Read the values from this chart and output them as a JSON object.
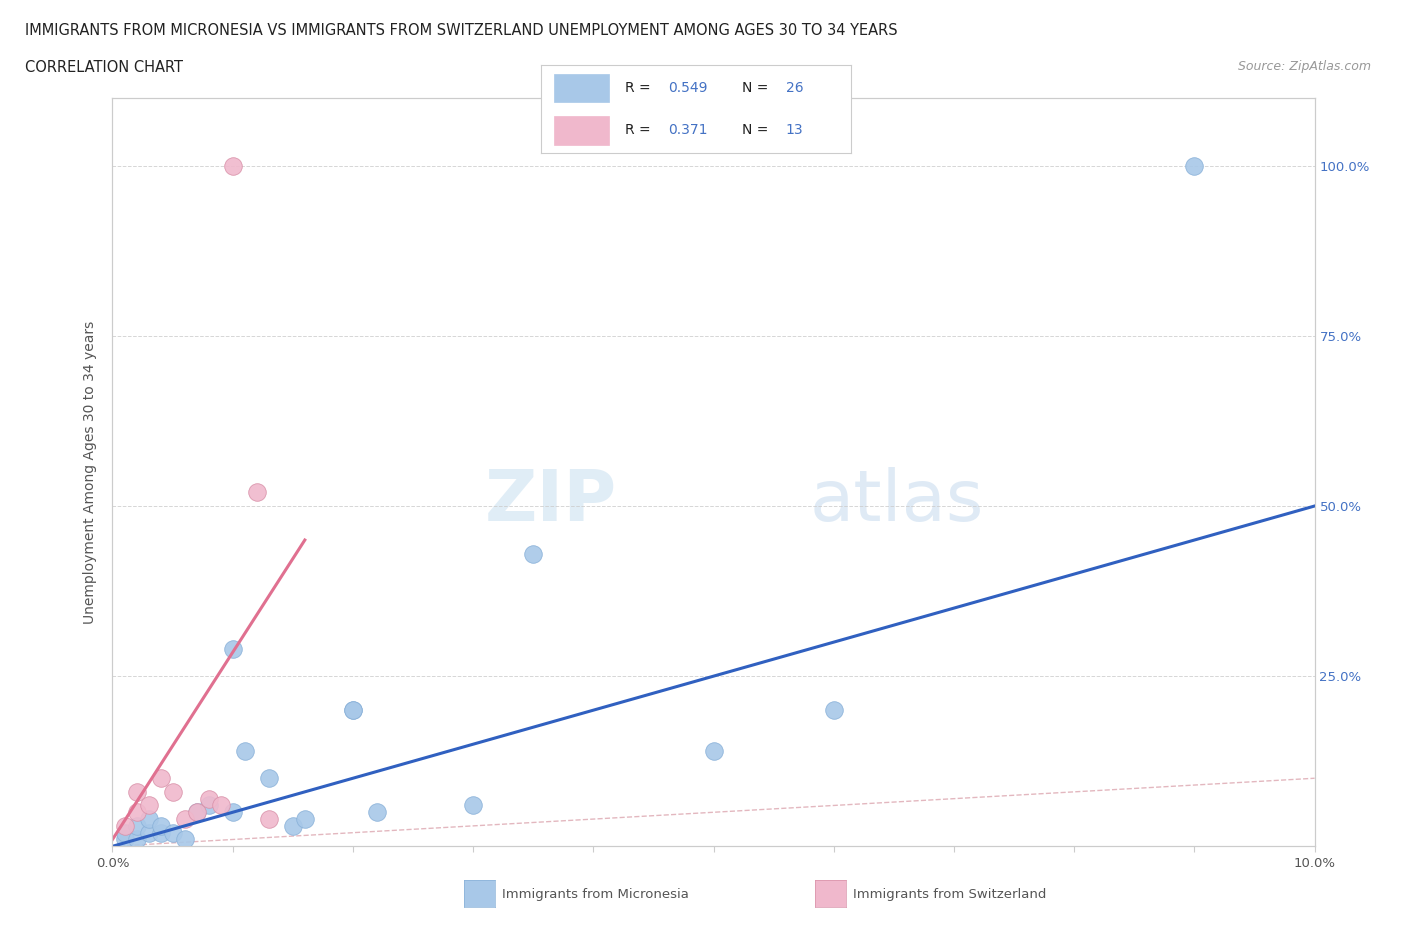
{
  "title_line1": "IMMIGRANTS FROM MICRONESIA VS IMMIGRANTS FROM SWITZERLAND UNEMPLOYMENT AMONG AGES 30 TO 34 YEARS",
  "title_line2": "CORRELATION CHART",
  "source_text": "Source: ZipAtlas.com",
  "ylabel": "Unemployment Among Ages 30 to 34 years",
  "watermark_zip": "ZIP",
  "watermark_atlas": "atlas",
  "xlim": [
    0.0,
    0.1
  ],
  "ylim": [
    0.0,
    1.1
  ],
  "micronesia_color": "#a8c8e8",
  "switzerland_color": "#f0b8cc",
  "trend_micronesia_color": "#3060c0",
  "trend_switzerland_color": "#e07090",
  "diagonal_color": "#d0b8b8",
  "R_micronesia": "0.549",
  "N_micronesia": "26",
  "R_switzerland": "0.371",
  "N_switzerland": "13",
  "legend_label_mic": "Immigrants from Micronesia",
  "legend_label_swi": "Immigrants from Switzerland",
  "micronesia_x": [
    0.001,
    0.001,
    0.002,
    0.002,
    0.003,
    0.003,
    0.004,
    0.004,
    0.005,
    0.006,
    0.007,
    0.008,
    0.01,
    0.01,
    0.011,
    0.013,
    0.015,
    0.016,
    0.02,
    0.02,
    0.022,
    0.03,
    0.035,
    0.05,
    0.06,
    0.09
  ],
  "micronesia_y": [
    0.01,
    0.02,
    0.01,
    0.03,
    0.02,
    0.04,
    0.02,
    0.03,
    0.02,
    0.01,
    0.05,
    0.06,
    0.29,
    0.05,
    0.14,
    0.1,
    0.03,
    0.04,
    0.2,
    0.2,
    0.05,
    0.06,
    0.43,
    0.14,
    0.2,
    1.0
  ],
  "switzerland_x": [
    0.001,
    0.002,
    0.002,
    0.003,
    0.004,
    0.005,
    0.006,
    0.007,
    0.008,
    0.009,
    0.01,
    0.012,
    0.013
  ],
  "switzerland_y": [
    0.03,
    0.05,
    0.08,
    0.06,
    0.1,
    0.08,
    0.04,
    0.05,
    0.07,
    0.06,
    1.0,
    0.52,
    0.04
  ],
  "trend_mic_x0": 0.0,
  "trend_mic_x1": 0.1,
  "trend_mic_y0": 0.0,
  "trend_mic_y1": 0.5,
  "trend_swi_x0": 0.0,
  "trend_swi_x1": 0.016,
  "trend_swi_y0": 0.01,
  "trend_swi_y1": 0.45
}
